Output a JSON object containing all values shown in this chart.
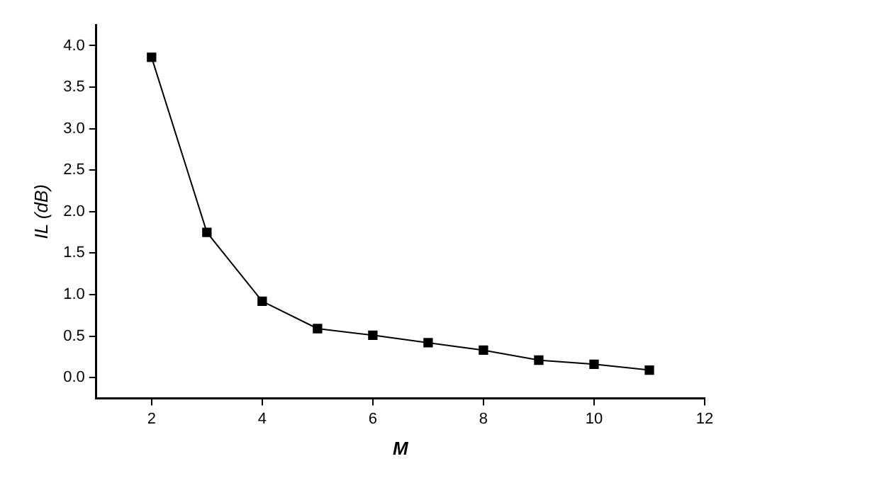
{
  "chart_data": {
    "type": "line",
    "xlabel": "M",
    "ylabel": "IL (dB)",
    "x": [
      2,
      3,
      4,
      5,
      6,
      7,
      8,
      9,
      10,
      11
    ],
    "series": [
      {
        "color": "#000000",
        "values": [
          3.86,
          1.75,
          0.92,
          0.59,
          0.51,
          0.42,
          0.33,
          0.21,
          0.16,
          0.09
        ]
      }
    ],
    "xlim": [
      1,
      12
    ],
    "xticks": [
      2,
      4,
      6,
      8,
      10,
      12
    ],
    "ylim": [
      -0.25,
      4.25
    ],
    "yticks": [
      {
        "value": 0,
        "label": "0.0"
      },
      {
        "value": 0.5,
        "label": "0.5"
      },
      {
        "value": 1,
        "label": "1.0"
      },
      {
        "value": 1.5,
        "label": "1.5"
      },
      {
        "value": 2,
        "label": "2.0"
      },
      {
        "value": 2.5,
        "label": "2.5"
      },
      {
        "value": 3,
        "label": "3.0"
      },
      {
        "value": 3.5,
        "label": "3.5"
      },
      {
        "value": 4,
        "label": "4.0"
      }
    ],
    "grid": false,
    "legend": false,
    "marker": "square",
    "line_style": "solid"
  }
}
